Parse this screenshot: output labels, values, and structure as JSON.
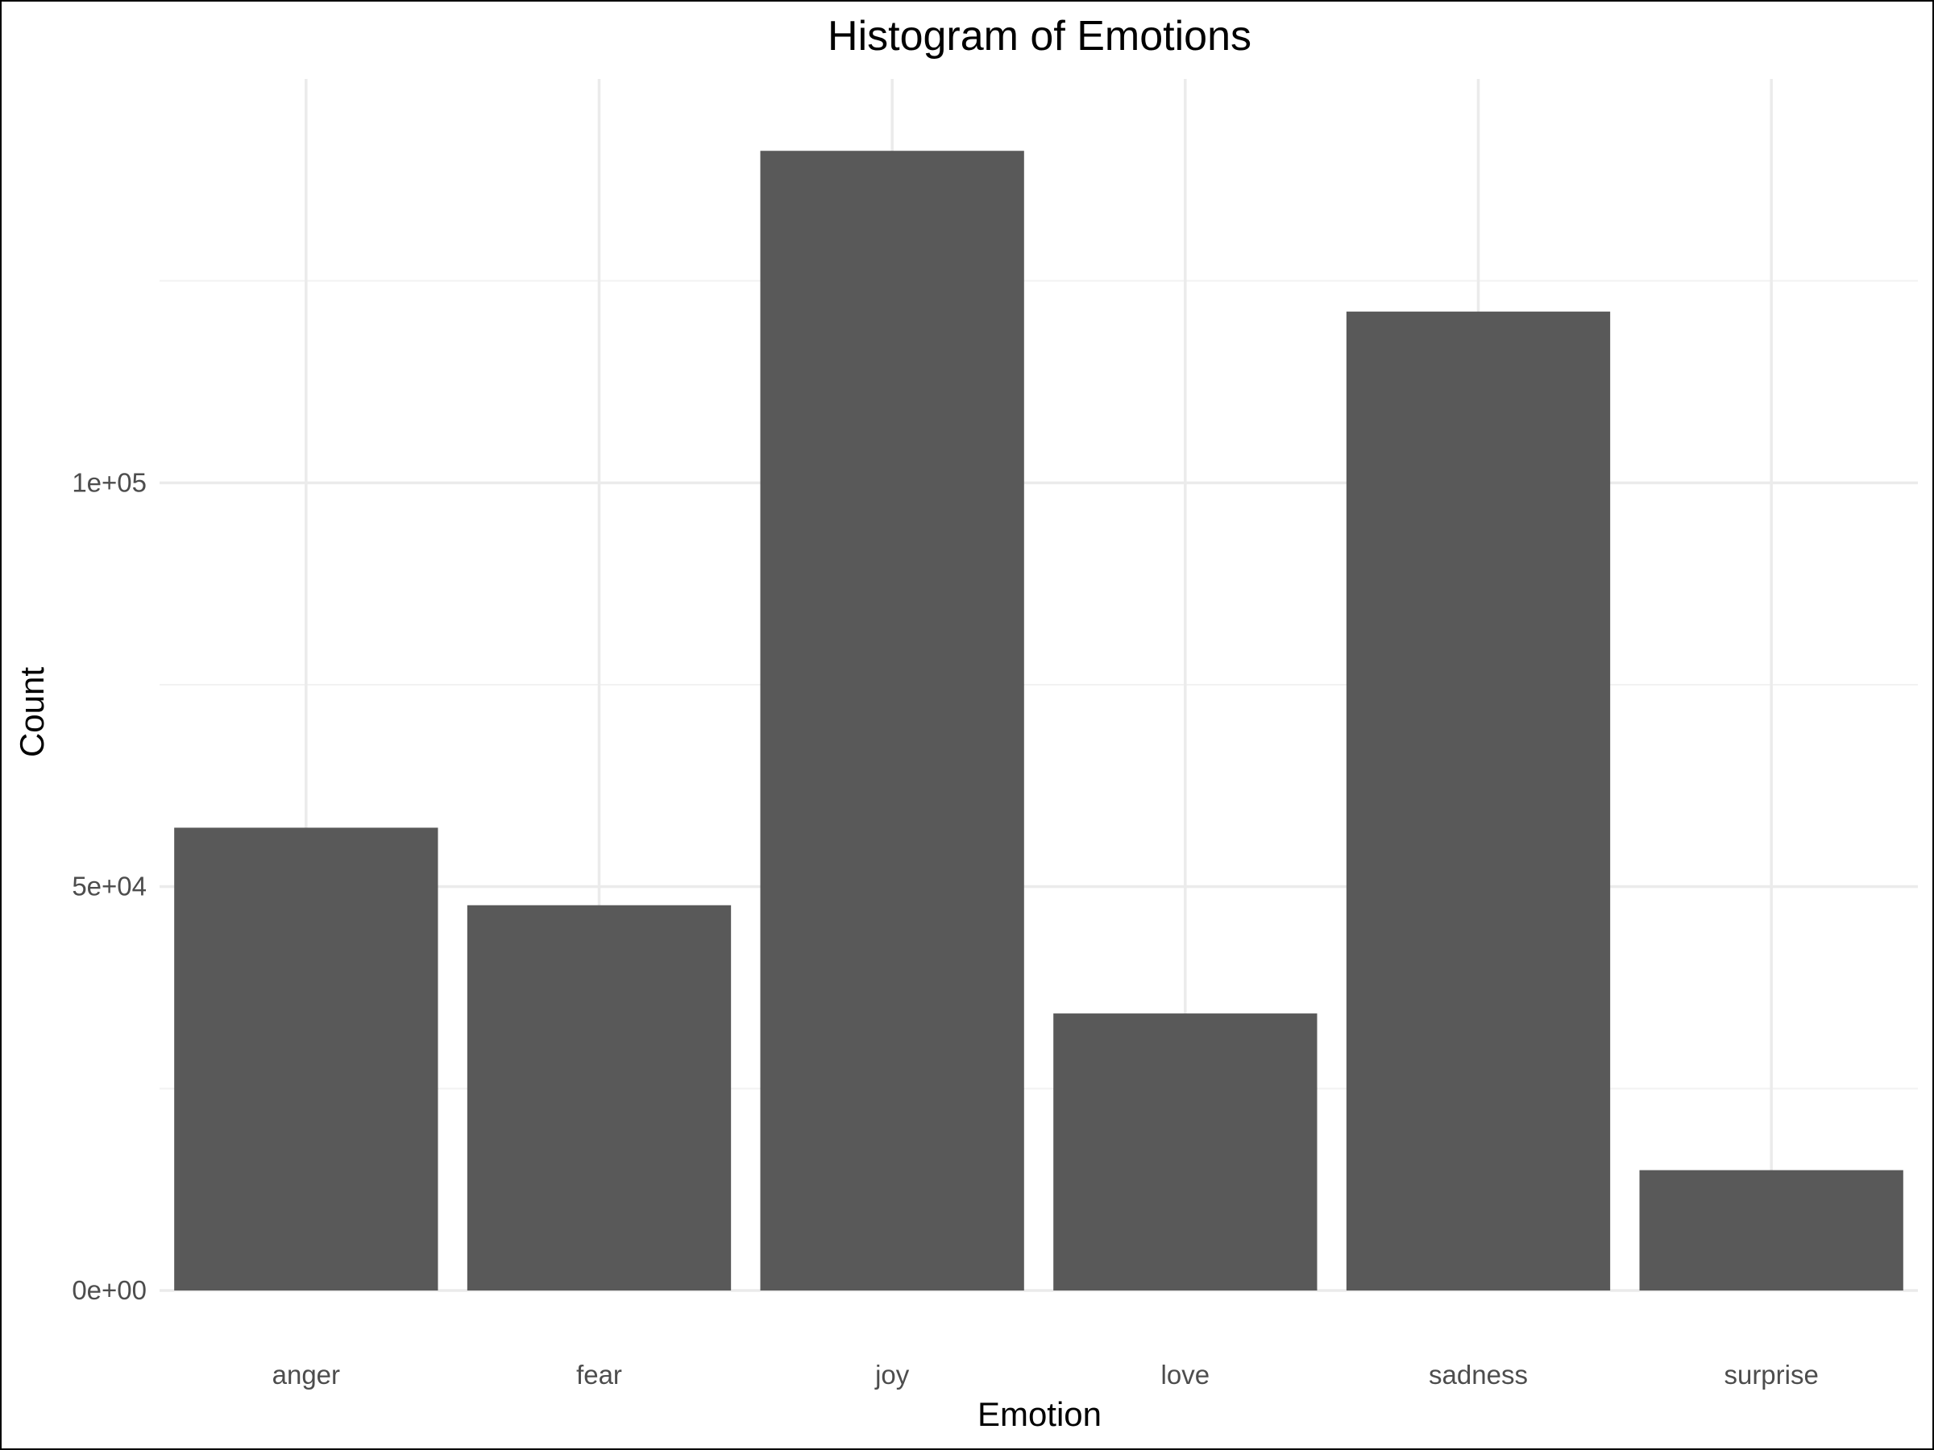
{
  "chart_data": {
    "type": "bar",
    "title": "Histogram of Emotions",
    "xlabel": "Emotion",
    "ylabel": "Count",
    "categories": [
      "anger",
      "fear",
      "joy",
      "love",
      "sadness",
      "surprise"
    ],
    "values": [
      57300,
      47700,
      141100,
      34300,
      121200,
      14900
    ],
    "ylim": [
      0,
      150000
    ],
    "yticks": [
      0,
      50000,
      100000
    ],
    "ytick_labels": [
      "0e+00",
      "5e+04",
      "1e+05"
    ],
    "grid": true,
    "bar_color": "#595959",
    "grid_color": "#ebebeb"
  }
}
